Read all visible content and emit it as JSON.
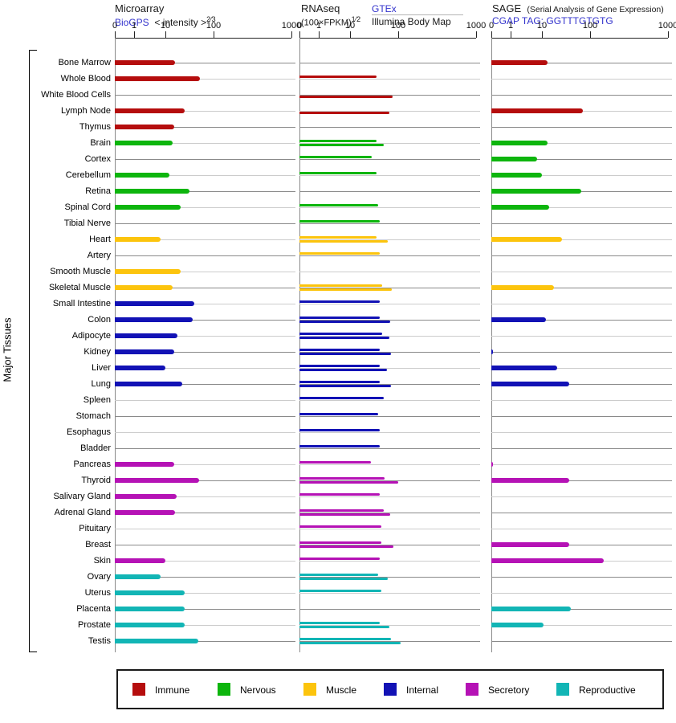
{
  "header": {
    "microarray": {
      "title": "Microarray",
      "link": "BioGPS",
      "formula": "< intensity >",
      "formula_sup": "2⁄3"
    },
    "rnaseq": {
      "title": "RNAseq",
      "formula": "(100×FPKM)",
      "formula_sup": "1⁄2",
      "link_gtex": "GTEx",
      "source_illumina": "Illumina Body Map"
    },
    "sage": {
      "title": "SAGE",
      "note": "(Serial Analysis of Gene Expression)",
      "link": "CGAP TAG: GGTTTGTGTG"
    }
  },
  "y_axis_label": "Major Tissues",
  "colors": {
    "link": "#3232cc",
    "row_line_dark": "#8a8a8a",
    "row_line_light": "#cccccc"
  },
  "legend": [
    {
      "label": "Immune",
      "color": "#b50d0d"
    },
    {
      "label": "Nervous",
      "color": "#0db50d"
    },
    {
      "label": "Muscle",
      "color": "#fcc40d"
    },
    {
      "label": "Internal",
      "color": "#1212b5"
    },
    {
      "label": "Secretory",
      "color": "#b512b5"
    },
    {
      "label": "Reproductive",
      "color": "#12b5b5"
    }
  ],
  "chart_data": {
    "type": "bar",
    "orientation": "horizontal",
    "x_scale": "pseudo-log",
    "x_ticks": [
      0,
      1,
      10,
      100,
      1000
    ],
    "ylabel": "Major Tissues",
    "panels": [
      {
        "name": "Microarray",
        "series": [
          "BioGPS intensity^(2/3)"
        ]
      },
      {
        "name": "RNAseq",
        "series": [
          "GTEx (100×FPKM)^(1/2)",
          "Illumina Body Map (100×FPKM)^(1/2)"
        ]
      },
      {
        "name": "SAGE",
        "series": [
          "CGAP TAG: GGTTTGTGTG"
        ]
      }
    ],
    "groups": {
      "Immune": "#b50d0d",
      "Nervous": "#0db50d",
      "Muscle": "#fcc40d",
      "Internal": "#1212b5",
      "Secretory": "#b512b5",
      "Reproductive": "#12b5b5"
    },
    "tissues": [
      {
        "name": "Bone Marrow",
        "group": "Immune",
        "microarray": 16,
        "gtex": null,
        "illumina": null,
        "sage": 13
      },
      {
        "name": "Whole Blood",
        "group": "Immune",
        "microarray": 52,
        "gtex": 35,
        "illumina": null,
        "sage": null
      },
      {
        "name": "White Blood Cells",
        "group": "Immune",
        "microarray": null,
        "gtex": null,
        "illumina": 76,
        "sage": null
      },
      {
        "name": "Lymph Node",
        "group": "Immune",
        "microarray": 25,
        "gtex": null,
        "illumina": 66,
        "sage": 72
      },
      {
        "name": "Thymus",
        "group": "Immune",
        "microarray": 15,
        "gtex": null,
        "illumina": null,
        "sage": null
      },
      {
        "name": "Brain",
        "group": "Nervous",
        "microarray": 14,
        "gtex": 35,
        "illumina": 50,
        "sage": 13
      },
      {
        "name": "Cortex",
        "group": "Nervous",
        "microarray": null,
        "gtex": 28,
        "illumina": null,
        "sage": 7
      },
      {
        "name": "Cerebellum",
        "group": "Nervous",
        "microarray": 12,
        "gtex": 35,
        "illumina": null,
        "sage": 10
      },
      {
        "name": "Retina",
        "group": "Nervous",
        "microarray": 32,
        "gtex": null,
        "illumina": null,
        "sage": 65
      },
      {
        "name": "Spinal Cord",
        "group": "Nervous",
        "microarray": 21,
        "gtex": 39,
        "illumina": null,
        "sage": 14
      },
      {
        "name": "Tibial Nerve",
        "group": "Nervous",
        "microarray": null,
        "gtex": 42,
        "illumina": null,
        "sage": null
      },
      {
        "name": "Heart",
        "group": "Muscle",
        "microarray": 7,
        "gtex": 36,
        "illumina": 60,
        "sage": 26
      },
      {
        "name": "Artery",
        "group": "Muscle",
        "microarray": null,
        "gtex": 41,
        "illumina": null,
        "sage": null
      },
      {
        "name": "Smooth Muscle",
        "group": "Muscle",
        "microarray": 21,
        "gtex": null,
        "illumina": null,
        "sage": null
      },
      {
        "name": "Skeletal Muscle",
        "group": "Muscle",
        "microarray": 14,
        "gtex": 46,
        "illumina": 74,
        "sage": 18
      },
      {
        "name": "Small Intestine",
        "group": "Internal",
        "microarray": 40,
        "gtex": 42,
        "illumina": null,
        "sage": null
      },
      {
        "name": "Colon",
        "group": "Internal",
        "microarray": 37,
        "gtex": 41,
        "illumina": 68,
        "sage": 12
      },
      {
        "name": "Adipocyte",
        "group": "Internal",
        "microarray": 18,
        "gtex": 46,
        "illumina": 66,
        "sage": null
      },
      {
        "name": "Kidney",
        "group": "Internal",
        "microarray": 15,
        "gtex": 41,
        "illumina": 72,
        "sage": 0.1
      },
      {
        "name": "Liver",
        "group": "Internal",
        "microarray": 10,
        "gtex": 42,
        "illumina": 58,
        "sage": 21
      },
      {
        "name": "Lung",
        "group": "Internal",
        "microarray": 22,
        "gtex": 42,
        "illumina": 72,
        "sage": 37
      },
      {
        "name": "Spleen",
        "group": "Internal",
        "microarray": null,
        "gtex": 50,
        "illumina": null,
        "sage": null
      },
      {
        "name": "Stomach",
        "group": "Internal",
        "microarray": null,
        "gtex": 38,
        "illumina": null,
        "sage": null
      },
      {
        "name": "Esophagus",
        "group": "Internal",
        "microarray": null,
        "gtex": 41,
        "illumina": null,
        "sage": null
      },
      {
        "name": "Bladder",
        "group": "Internal",
        "microarray": null,
        "gtex": 41,
        "illumina": null,
        "sage": null
      },
      {
        "name": "Pancreas",
        "group": "Secretory",
        "microarray": 15,
        "gtex": 27,
        "illumina": null,
        "sage": 0.1
      },
      {
        "name": "Thyroid",
        "group": "Secretory",
        "microarray": 50,
        "gtex": 52,
        "illumina": 100,
        "sage": 37
      },
      {
        "name": "Salivary Gland",
        "group": "Secretory",
        "microarray": 17,
        "gtex": 41,
        "illumina": null,
        "sage": null
      },
      {
        "name": "Adrenal Gland",
        "group": "Secretory",
        "microarray": 16,
        "gtex": 51,
        "illumina": 68,
        "sage": null
      },
      {
        "name": "Pituitary",
        "group": "Secretory",
        "microarray": null,
        "gtex": 44,
        "illumina": null,
        "sage": null
      },
      {
        "name": "Breast",
        "group": "Secretory",
        "microarray": null,
        "gtex": 45,
        "illumina": 79,
        "sage": 37
      },
      {
        "name": "Skin",
        "group": "Secretory",
        "microarray": 10,
        "gtex": 41,
        "illumina": null,
        "sage": 150
      },
      {
        "name": "Ovary",
        "group": "Reproductive",
        "microarray": 7,
        "gtex": 39,
        "illumina": 60,
        "sage": null
      },
      {
        "name": "Uterus",
        "group": "Reproductive",
        "microarray": 25,
        "gtex": 45,
        "illumina": null,
        "sage": null
      },
      {
        "name": "Placenta",
        "group": "Reproductive",
        "microarray": 25,
        "gtex": null,
        "illumina": null,
        "sage": 40
      },
      {
        "name": "Prostate",
        "group": "Reproductive",
        "microarray": 25,
        "gtex": 42,
        "illumina": 66,
        "sage": 11
      },
      {
        "name": "Testis",
        "group": "Reproductive",
        "microarray": 48,
        "gtex": 72,
        "illumina": 107,
        "sage": null
      }
    ]
  }
}
